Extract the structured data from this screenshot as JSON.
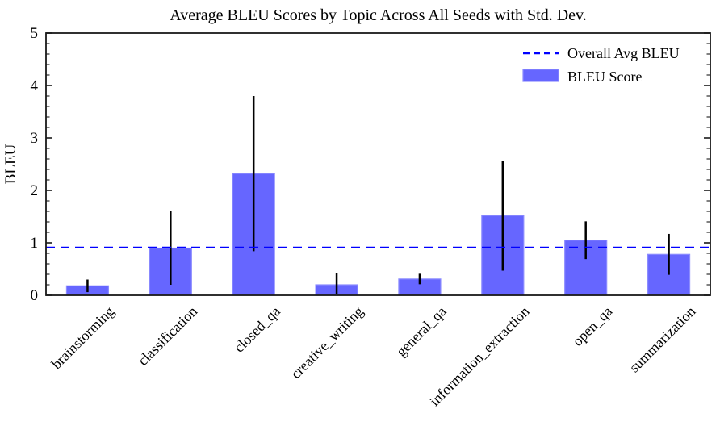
{
  "chart_data": {
    "type": "bar",
    "title": "Average BLEU Scores by Topic Across All Seeds with Std. Dev.",
    "ylabel": "BLEU",
    "xlabel": "",
    "ylim": [
      0,
      5
    ],
    "yticks": [
      "0",
      "1",
      "2",
      "3",
      "4",
      "5"
    ],
    "minor_tick_step": 0.2,
    "grid": false,
    "categories": [
      "brainstorming",
      "classification",
      "closed_qa",
      "creative_writing",
      "general_qa",
      "information_extraction",
      "open_qa",
      "summarization"
    ],
    "values": [
      0.18,
      0.9,
      2.32,
      0.2,
      0.31,
      1.52,
      1.05,
      0.78
    ],
    "std_devs": [
      0.12,
      0.7,
      1.48,
      0.22,
      0.1,
      1.05,
      0.36,
      0.39
    ],
    "overall_avg": 0.91,
    "legend": {
      "position": "upper right",
      "items": [
        {
          "label": "Overall Avg BLEU",
          "type": "dashed-line"
        },
        {
          "label": "BLEU Score",
          "type": "bar-swatch"
        }
      ]
    },
    "colors": {
      "bar_fill": "#6666ff",
      "bar_edge": "#8c8cff",
      "error_bar": "#000000",
      "avg_line": "#0000ff",
      "axes": "#1a1a1a",
      "text": "#000000"
    }
  }
}
